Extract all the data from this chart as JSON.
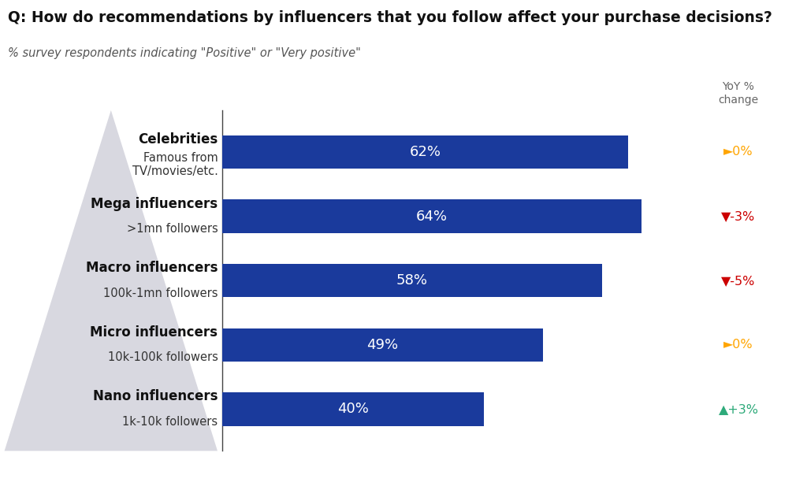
{
  "title": "Q: How do recommendations by influencers that you follow affect your purchase decisions?",
  "subtitle": "% survey respondents indicating \"Positive\" or \"Very positive\"",
  "yoy_label": "YoY %\nchange",
  "category_bold": [
    "Celebrities",
    "Mega influencers",
    "Macro influencers",
    "Micro influencers",
    "Nano influencers"
  ],
  "category_sub": [
    "Famous from\nTV/movies/etc.",
    ">1mn followers",
    "100k-1mn followers",
    "10k-100k followers",
    "1k-10k followers"
  ],
  "values": [
    62,
    64,
    58,
    49,
    40
  ],
  "bar_color": "#1a3a9c",
  "background_color": "#ffffff",
  "yoy_values": [
    "►0%",
    "▼-3%",
    "▼-5%",
    "►0%",
    "▲+3%"
  ],
  "yoy_colors": [
    "#FFA500",
    "#CC0000",
    "#CC0000",
    "#FFA500",
    "#2EAA7A"
  ],
  "title_fontsize": 13.5,
  "subtitle_fontsize": 10.5,
  "label_bold_fontsize": 12,
  "label_sub_fontsize": 10.5,
  "bar_label_fontsize": 13,
  "yoy_fontsize": 11.5,
  "yoy_header_fontsize": 10,
  "xlim_max": 72,
  "triangle_color": "#d8d8e0",
  "spine_color": "#444444"
}
